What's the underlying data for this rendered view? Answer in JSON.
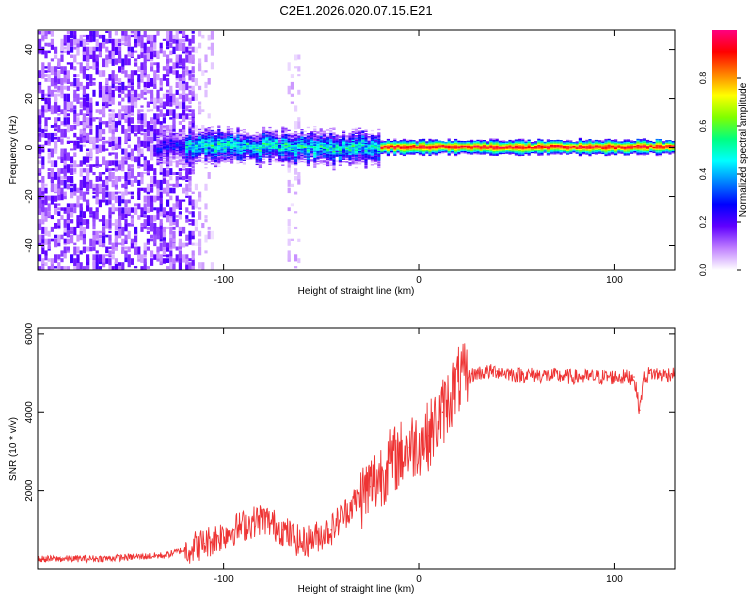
{
  "title": "C2E1.2026.020.07.15.E21",
  "chart_data": [
    {
      "type": "heatmap",
      "xlabel": "Height of straight line (km)",
      "ylabel": "Frequency (Hz)",
      "xlim": [
        -195,
        131
      ],
      "ylim": [
        -50,
        48
      ],
      "x_ticks": [
        -100,
        0,
        100
      ],
      "y_ticks": [
        -40,
        -20,
        0,
        20,
        40
      ],
      "colorbar": {
        "label": "Normalized spectral amplitude",
        "range": [
          0,
          1
        ],
        "ticks": [
          0.0,
          0.2,
          0.4,
          0.6,
          0.8
        ],
        "colors": [
          "#ffffff",
          "#c080ff",
          "#6000ff",
          "#0000ff",
          "#0080ff",
          "#00ffff",
          "#00ff80",
          "#80ff00",
          "#ffff00",
          "#ff8000",
          "#ff0000",
          "#ff0080"
        ]
      },
      "features": {
        "noise_region_km": [
          -195,
          -115
        ],
        "spectral_line_start_km": -135,
        "line_center_hz": 0,
        "line_width_hz_wide": 8,
        "line_width_hz_narrow": 3,
        "narrowing_km": -20,
        "interference_band_km": -65
      }
    },
    {
      "type": "line",
      "color": "#ee3333",
      "xlabel": "Height of straight line (km)",
      "ylabel": "SNR (10 * v/v)",
      "xlim": [
        -195,
        131
      ],
      "ylim": [
        0,
        6150
      ],
      "x_ticks": [
        -100,
        0,
        100
      ],
      "y_ticks": [
        2000,
        4000,
        6000
      ],
      "x": [
        -195,
        -160,
        -130,
        -110,
        -95,
        -80,
        -70,
        -60,
        -45,
        -35,
        -25,
        -15,
        -5,
        5,
        12,
        20,
        30,
        40,
        50,
        60,
        80,
        100,
        110,
        113,
        115,
        118,
        125,
        131
      ],
      "y": [
        250,
        270,
        350,
        650,
        1000,
        1300,
        1000,
        650,
        1000,
        1600,
        2100,
        2700,
        3100,
        3400,
        4000,
        4800,
        5000,
        5050,
        4950,
        4950,
        4900,
        4900,
        4900,
        4050,
        4850,
        5000,
        4950,
        5000
      ]
    }
  ]
}
